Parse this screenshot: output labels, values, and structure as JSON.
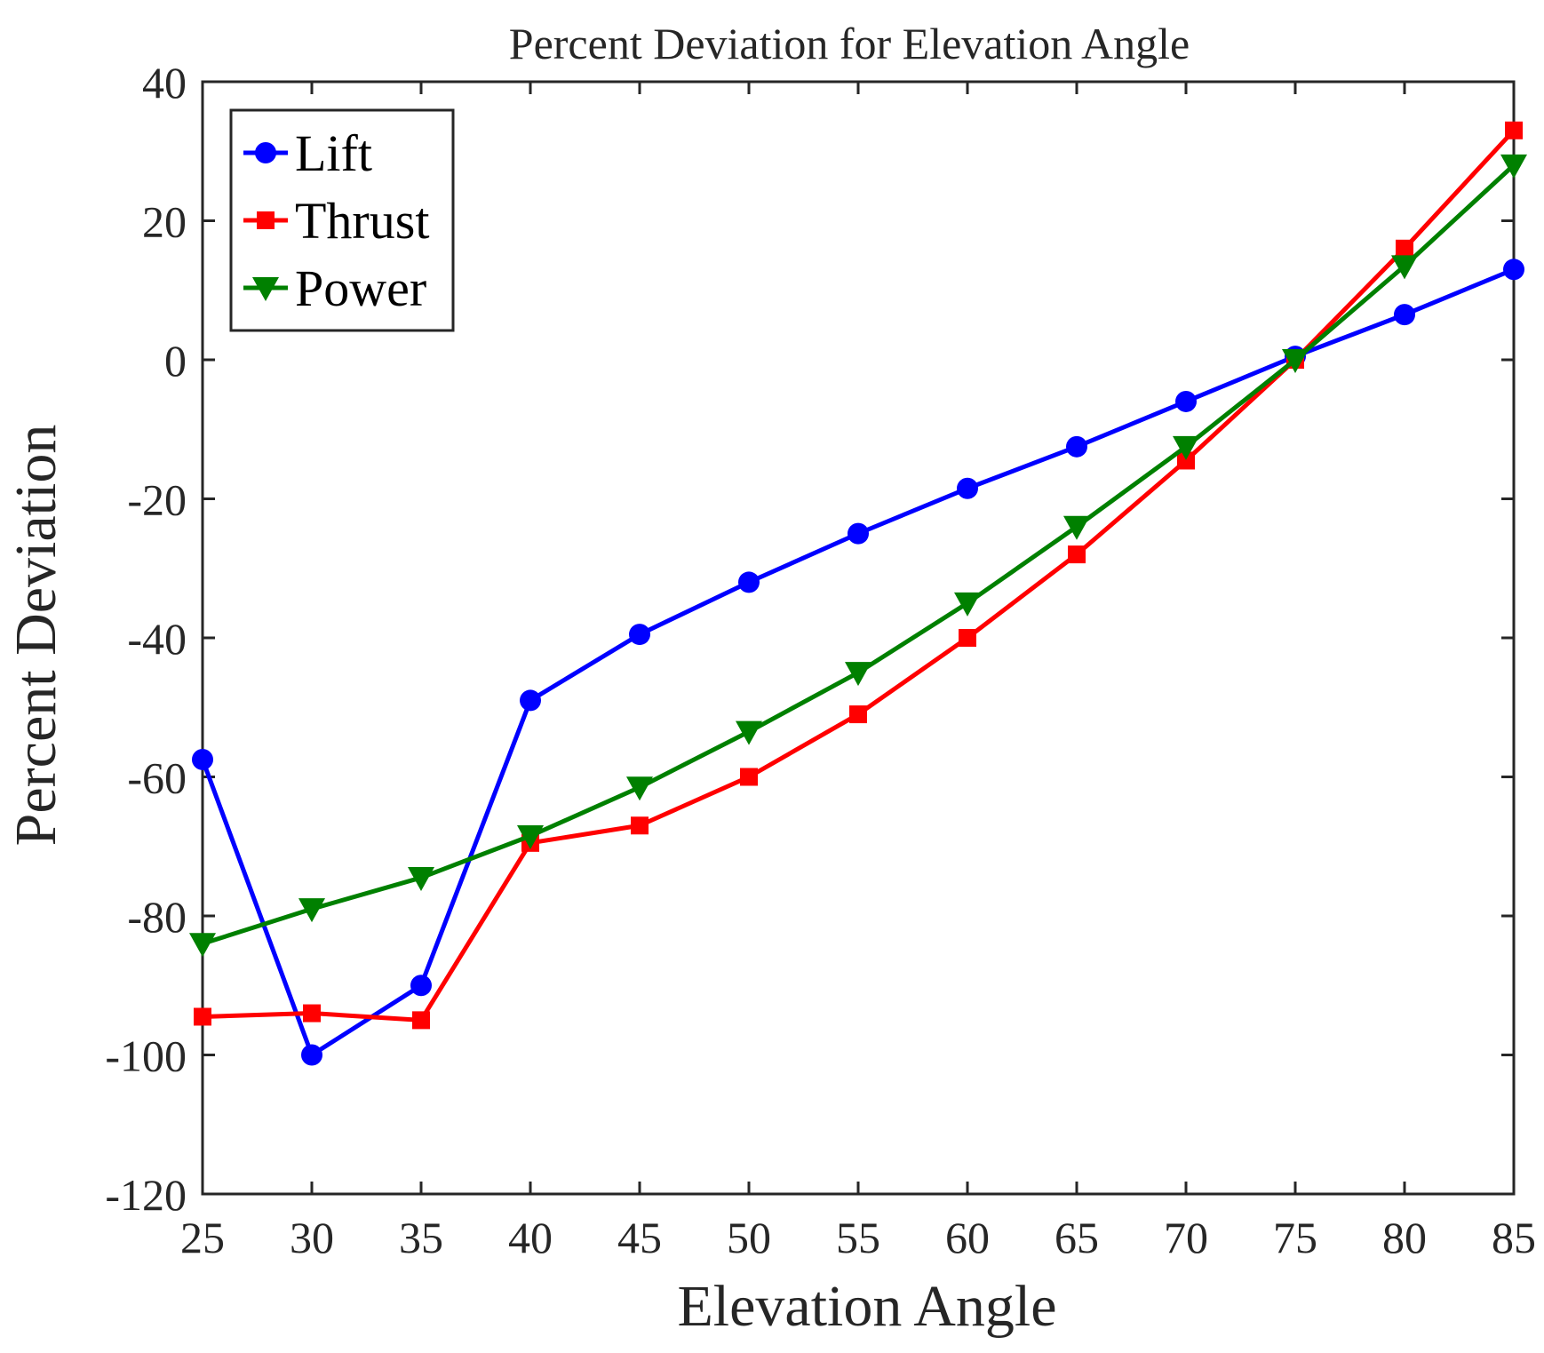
{
  "chart_data": {
    "type": "line",
    "title": "Percent Deviation for Elevation Angle",
    "xlabel": "Elevation Angle",
    "ylabel": "Percent Deviation",
    "xlim": [
      25,
      85
    ],
    "ylim": [
      -120,
      40
    ],
    "xticks": [
      25,
      30,
      35,
      40,
      45,
      50,
      55,
      60,
      65,
      70,
      75,
      80,
      85
    ],
    "yticks": [
      40,
      20,
      0,
      -20,
      -40,
      -60,
      -80,
      -100,
      -120
    ],
    "x": [
      25,
      30,
      35,
      40,
      45,
      50,
      55,
      60,
      65,
      70,
      75,
      80,
      85
    ],
    "legend_position": "top-left",
    "series": [
      {
        "name": "Lift",
        "color": "#0000ff",
        "marker": "circle",
        "values": [
          -57.5,
          -100,
          -90,
          -49,
          -39.5,
          -32,
          -25,
          -18.5,
          -12.5,
          -6,
          0.5,
          6.5,
          13
        ]
      },
      {
        "name": "Thrust",
        "color": "#ff0000",
        "marker": "square",
        "values": [
          -94.5,
          -94,
          -95,
          -69.5,
          -67,
          -60,
          -51,
          -40,
          -28,
          -14.5,
          0,
          16,
          33
        ]
      },
      {
        "name": "Power",
        "color": "#008000",
        "marker": "triangle-down",
        "values": [
          -84,
          -79,
          -74.5,
          -68.5,
          -61.5,
          -53.5,
          -45,
          -35,
          -24,
          -12.5,
          0,
          13.5,
          28
        ]
      }
    ]
  }
}
